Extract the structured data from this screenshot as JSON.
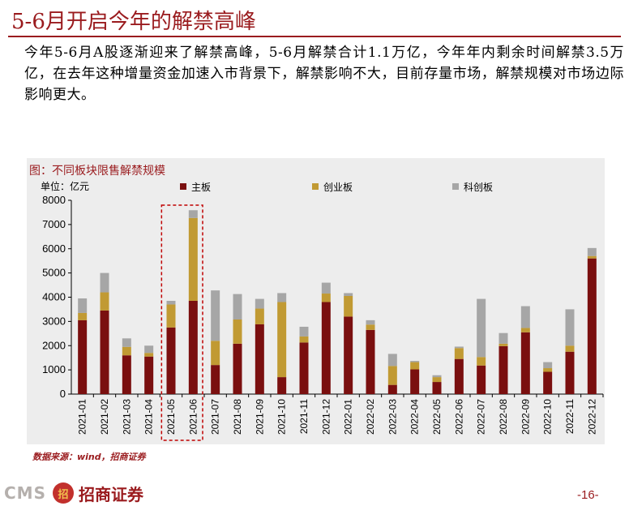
{
  "page": {
    "title": "5-6月开启今年的解禁高峰",
    "body": "今年5-6月A股逐渐迎来了解禁高峰，5-6月解禁合计1.1万亿，今年年内剩余时间解禁3.5万亿，在去年这种增量资金加速入市背景下，解禁影响不大，目前存量市场，解禁规模对市场边际影响更大。",
    "source": "数据来源：wind，招商证券",
    "page_number": "-16-",
    "logo": {
      "latin": "CMS",
      "mark": "招",
      "cn": "招商证券"
    }
  },
  "chart_data": {
    "type": "bar",
    "stacked": true,
    "title": "图：不同板块限售解禁规模",
    "unit_label": "单位：亿元",
    "categories": [
      "2021-01",
      "2021-02",
      "2021-03",
      "2021-04",
      "2021-05",
      "2021-06",
      "2021-07",
      "2021-08",
      "2021-09",
      "2021-10",
      "2021-11",
      "2021-12",
      "2022-01",
      "2022-02",
      "2022-03",
      "2022-04",
      "2022-05",
      "2022-06",
      "2022-07",
      "2022-08",
      "2022-09",
      "2022-10",
      "2022-11",
      "2022-12"
    ],
    "series": [
      {
        "name": "主板",
        "color": "#7a0f0f",
        "values": [
          3050,
          3450,
          1600,
          1550,
          2750,
          3850,
          1200,
          2080,
          2880,
          700,
          2130,
          3800,
          3200,
          2650,
          380,
          1020,
          500,
          1450,
          1180,
          1980,
          2550,
          920,
          1750,
          5600
        ]
      },
      {
        "name": "创业板",
        "color": "#c19a33",
        "values": [
          300,
          750,
          350,
          150,
          950,
          3420,
          1000,
          1000,
          650,
          3100,
          250,
          350,
          850,
          220,
          780,
          300,
          200,
          450,
          350,
          100,
          180,
          150,
          250,
          100
        ]
      },
      {
        "name": "科创板",
        "color": "#a6a6a6",
        "values": [
          600,
          800,
          350,
          300,
          150,
          320,
          2080,
          1050,
          400,
          370,
          400,
          450,
          120,
          180,
          500,
          50,
          80,
          60,
          2400,
          440,
          900,
          250,
          1500,
          330
        ]
      }
    ],
    "yticks": [
      0,
      1000,
      2000,
      3000,
      4000,
      5000,
      6000,
      7000,
      8000
    ],
    "ylim": [
      0,
      8000
    ],
    "highlight": {
      "categories": [
        "2021-05",
        "2021-06"
      ],
      "color": "#c00000",
      "style": "dashed"
    },
    "legend_position": "top"
  }
}
